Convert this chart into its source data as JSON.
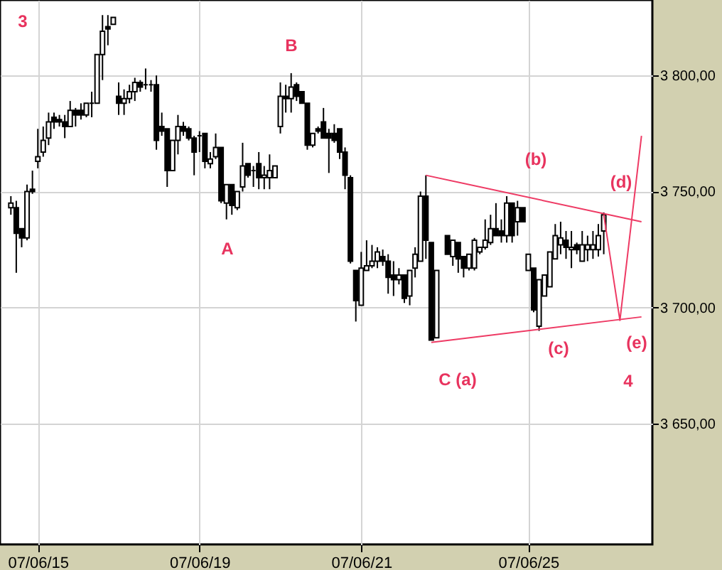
{
  "chart_data": {
    "type": "candlestick",
    "categories": [
      null,
      null,
      null,
      null,
      null,
      "07/06/15",
      null,
      null,
      null,
      null,
      null,
      null,
      null,
      null,
      null,
      null,
      null,
      null,
      null,
      null,
      null,
      null,
      null,
      null,
      null,
      null,
      null,
      null,
      null,
      null,
      null,
      null,
      null,
      null,
      null,
      "07/06/19",
      null,
      null,
      null,
      null,
      null,
      null,
      null,
      null,
      null,
      null,
      null,
      null,
      null,
      null,
      null,
      null,
      null,
      null,
      null,
      null,
      null,
      null,
      null,
      null,
      null,
      null,
      null,
      null,
      null,
      "07/06/21",
      null,
      null,
      null,
      null,
      null,
      null,
      null,
      null,
      null,
      null,
      null,
      null,
      null,
      null,
      null,
      null,
      null,
      null,
      null,
      null,
      null,
      null,
      null,
      null,
      null,
      null,
      null,
      null,
      null,
      null,
      "07/06/25",
      null,
      null,
      null,
      null,
      null,
      null,
      null,
      null,
      null,
      null,
      null,
      null,
      null,
      null,
      null,
      null,
      null,
      null,
      null,
      null,
      null
    ],
    "ohlc": [
      [
        3743,
        3748,
        3740,
        3745
      ],
      [
        3743,
        3746,
        3715,
        3732
      ],
      [
        3734,
        3734,
        3726,
        3730
      ],
      [
        3730,
        3753,
        3729,
        3750
      ],
      [
        3751,
        3759,
        3749,
        3750
      ],
      [
        3763,
        3777,
        3760,
        3765
      ],
      [
        3767,
        3778,
        3765,
        3772
      ],
      [
        3773,
        3784,
        3770,
        3780
      ],
      [
        3782,
        3784,
        3777,
        3780
      ],
      [
        3781,
        3783,
        3778,
        3780
      ],
      [
        3780,
        3783,
        3773,
        3778
      ],
      [
        3778,
        3789,
        3778,
        3785
      ],
      [
        3785,
        3786,
        3778,
        3783
      ],
      [
        3785,
        3788,
        3781,
        3783
      ],
      [
        3783,
        3788,
        3782,
        3788
      ],
      [
        3788,
        3793,
        3782,
        3788
      ],
      [
        3788,
        3809,
        3788,
        3809
      ],
      [
        3809,
        3826,
        3798,
        3819
      ],
      [
        3821,
        3826,
        3813,
        3820
      ],
      [
        3822,
        3825,
        3822,
        3825
      ],
      [
        3791,
        3797,
        3783,
        3788
      ],
      [
        3788,
        3794,
        3783,
        3790
      ],
      [
        3790,
        3796,
        3788,
        3793
      ],
      [
        3793,
        3799,
        3789,
        3797
      ],
      [
        3797,
        3798,
        3793,
        3795
      ],
      [
        3796,
        3803,
        3794,
        3796
      ],
      [
        3796,
        3798,
        3793,
        3796
      ],
      [
        3796,
        3800,
        3768,
        3772
      ],
      [
        3778,
        3784,
        3774,
        3776
      ],
      [
        3777,
        3777,
        3752,
        3759
      ],
      [
        3759,
        3772,
        3759,
        3772
      ],
      [
        3772,
        3783,
        3766,
        3778
      ],
      [
        3778,
        3780,
        3774,
        3776
      ],
      [
        3777,
        3778,
        3772,
        3773
      ],
      [
        3773,
        3774,
        3757,
        3767
      ],
      [
        3774,
        3776,
        3767,
        3774
      ],
      [
        3775,
        3775,
        3760,
        3763
      ],
      [
        3762,
        3767,
        3760,
        3764
      ],
      [
        3765,
        3775,
        3764,
        3769
      ],
      [
        3769,
        3769,
        3745,
        3746
      ],
      [
        3745,
        3753,
        3738,
        3753
      ],
      [
        3753,
        3753,
        3740,
        3744
      ],
      [
        3743,
        3750,
        3742,
        3750
      ],
      [
        3752,
        3771,
        3750,
        3761
      ],
      [
        3762,
        3762,
        3756,
        3757
      ],
      [
        3759,
        3761,
        3752,
        3759
      ],
      [
        3762,
        3767,
        3751,
        3756
      ],
      [
        3756,
        3761,
        3751,
        3757
      ],
      [
        3756,
        3766,
        3751,
        3759
      ],
      [
        3756,
        3761,
        3756,
        3761
      ],
      [
        3778,
        3797,
        3775,
        3791
      ],
      [
        3791,
        3796,
        3784,
        3790
      ],
      [
        3790,
        3801,
        3784,
        3795
      ],
      [
        3796,
        3797,
        3789,
        3791
      ],
      [
        3793,
        3793,
        3788,
        3788
      ],
      [
        3788,
        3788,
        3768,
        3770
      ],
      [
        3770,
        3775,
        3769,
        3775
      ],
      [
        3777,
        3778,
        3775,
        3776
      ],
      [
        3780,
        3786,
        3773,
        3773
      ],
      [
        3775,
        3777,
        3758,
        3773
      ],
      [
        3775,
        3779,
        3771,
        3772
      ],
      [
        3777,
        3777,
        3764,
        3767
      ],
      [
        3767,
        3769,
        3751,
        3757
      ],
      [
        3756,
        3757,
        3719,
        3720
      ],
      [
        3716,
        3716,
        3694,
        3703
      ],
      [
        3701,
        3724,
        3701,
        3717
      ],
      [
        3716,
        3729,
        3716,
        3718
      ],
      [
        3718,
        3727,
        3717,
        3720
      ],
      [
        3720,
        3726,
        3717,
        3724
      ],
      [
        3722,
        3725,
        3718,
        3720
      ],
      [
        3720,
        3723,
        3706,
        3713
      ],
      [
        3714,
        3720,
        3705,
        3712
      ],
      [
        3712,
        3717,
        3710,
        3714
      ],
      [
        3714,
        3714,
        3702,
        3704
      ],
      [
        3705,
        3716,
        3701,
        3716
      ],
      [
        3717,
        3726,
        3713,
        3723
      ],
      [
        3720,
        3750,
        3720,
        3748
      ],
      [
        3748,
        3757,
        3721,
        3729
      ],
      [
        3728,
        3728,
        3686,
        3686
      ],
      [
        3687,
        3716,
        3687,
        3716
      ],
      null,
      [
        3731,
        3731,
        3723,
        3723
      ],
      [
        3722,
        3729,
        3718,
        3729
      ],
      [
        3728,
        3728,
        3715,
        3721
      ],
      [
        3722,
        3722,
        3713,
        3717
      ],
      [
        3717,
        3723,
        3716,
        3723
      ],
      [
        3717,
        3730,
        3716,
        3729
      ],
      [
        3724,
        3726,
        3723,
        3726
      ],
      [
        3726,
        3738,
        3725,
        3729
      ],
      [
        3728,
        3740,
        3727,
        3734
      ],
      [
        3734,
        3745,
        3731,
        3731
      ],
      [
        3733,
        3738,
        3728,
        3731
      ],
      [
        3731,
        3748,
        3728,
        3745
      ],
      [
        3745,
        3745,
        3728,
        3731
      ],
      [
        3737,
        3746,
        3731,
        3743
      ],
      [
        3743,
        3743,
        3737,
        3737
      ],
      [
        3716,
        3723,
        3716,
        3723
      ],
      [
        3717,
        3717,
        3698,
        3699
      ],
      [
        3692,
        3712,
        3690,
        3712
      ],
      [
        3705,
        3714,
        3705,
        3714
      ],
      [
        3709,
        3724,
        3709,
        3724
      ],
      [
        3721,
        3736,
        3721,
        3731
      ],
      [
        3727,
        3737,
        3723,
        3730
      ],
      [
        3729,
        3733,
        3721,
        3726
      ],
      [
        3725,
        3733,
        3717,
        3726
      ],
      [
        3727,
        3728,
        3723,
        3725
      ],
      [
        3720,
        3733,
        3720,
        3727
      ],
      [
        3725,
        3731,
        3720,
        3727
      ],
      [
        3725,
        3733,
        3721,
        3727
      ],
      [
        3725,
        3736,
        3722,
        3731
      ],
      [
        3733,
        3741,
        3723,
        3740
      ],
      null,
      null,
      null,
      null,
      null,
      null,
      null
    ],
    "series": [
      {
        "type": "line",
        "color": "#ee3a64",
        "values": [
          null,
          null,
          null,
          null,
          null,
          null,
          null,
          null,
          null,
          null,
          null,
          null,
          null,
          null,
          null,
          null,
          null,
          null,
          null,
          null,
          null,
          null,
          null,
          null,
          null,
          null,
          null,
          null,
          null,
          null,
          null,
          null,
          null,
          null,
          null,
          null,
          null,
          null,
          null,
          null,
          null,
          null,
          null,
          null,
          null,
          null,
          null,
          null,
          null,
          null,
          null,
          null,
          null,
          null,
          null,
          null,
          null,
          null,
          null,
          null,
          null,
          null,
          null,
          null,
          null,
          null,
          null,
          null,
          null,
          null,
          null,
          null,
          null,
          null,
          null,
          null,
          null,
          3757,
          null,
          null,
          null,
          null,
          null,
          null,
          null,
          null,
          null,
          null,
          null,
          null,
          null,
          null,
          null,
          null,
          null,
          null,
          null,
          null,
          null,
          null,
          null,
          null,
          null,
          null,
          null,
          null,
          null,
          null,
          null,
          null,
          null,
          null,
          null,
          null,
          null,
          null,
          null,
          3737
        ]
      },
      {
        "type": "line",
        "color": "#ee3a64",
        "values": [
          null,
          null,
          null,
          null,
          null,
          null,
          null,
          null,
          null,
          null,
          null,
          null,
          null,
          null,
          null,
          null,
          null,
          null,
          null,
          null,
          null,
          null,
          null,
          null,
          null,
          null,
          null,
          null,
          null,
          null,
          null,
          null,
          null,
          null,
          null,
          null,
          null,
          null,
          null,
          null,
          null,
          null,
          null,
          null,
          null,
          null,
          null,
          null,
          null,
          null,
          null,
          null,
          null,
          null,
          null,
          null,
          null,
          null,
          null,
          null,
          null,
          null,
          null,
          null,
          null,
          null,
          null,
          null,
          null,
          null,
          null,
          null,
          null,
          null,
          null,
          null,
          null,
          null,
          3685,
          null,
          null,
          null,
          null,
          null,
          null,
          null,
          null,
          null,
          null,
          null,
          null,
          null,
          null,
          null,
          null,
          null,
          null,
          null,
          null,
          null,
          null,
          null,
          null,
          null,
          null,
          null,
          null,
          null,
          null,
          null,
          null,
          null,
          null,
          null,
          null,
          null,
          null,
          3696
        ]
      },
      {
        "type": "line",
        "color": "#ee3a64",
        "values": [
          null,
          null,
          null,
          null,
          null,
          null,
          null,
          null,
          null,
          null,
          null,
          null,
          null,
          null,
          null,
          null,
          null,
          null,
          null,
          null,
          null,
          null,
          null,
          null,
          null,
          null,
          null,
          null,
          null,
          null,
          null,
          null,
          null,
          null,
          null,
          null,
          null,
          null,
          null,
          null,
          null,
          null,
          null,
          null,
          null,
          null,
          null,
          null,
          null,
          null,
          null,
          null,
          null,
          null,
          null,
          null,
          null,
          null,
          null,
          null,
          null,
          null,
          null,
          null,
          null,
          null,
          null,
          null,
          null,
          null,
          null,
          null,
          null,
          null,
          null,
          null,
          null,
          null,
          null,
          null,
          null,
          null,
          null,
          null,
          null,
          null,
          null,
          null,
          null,
          null,
          null,
          null,
          null,
          null,
          null,
          null,
          null,
          null,
          null,
          null,
          null,
          null,
          null,
          null,
          null,
          null,
          null,
          null,
          null,
          null,
          3740,
          null,
          null,
          3694.5,
          null,
          null,
          null,
          3774
        ]
      }
    ],
    "annotations": [
      "3",
      "B",
      "A",
      "(b)",
      "(d)",
      "C (a)",
      "(c)",
      "(e)",
      "4"
    ],
    "ylim": [
      3598,
      3832.5
    ],
    "yticks": [
      {
        "value": 3650,
        "label": "3 650,00"
      },
      {
        "value": 3700,
        "label": "3 700,00"
      },
      {
        "value": 3750,
        "label": "3 750,00"
      },
      {
        "value": 3800,
        "label": "3 800,00"
      }
    ],
    "grid": true
  }
}
